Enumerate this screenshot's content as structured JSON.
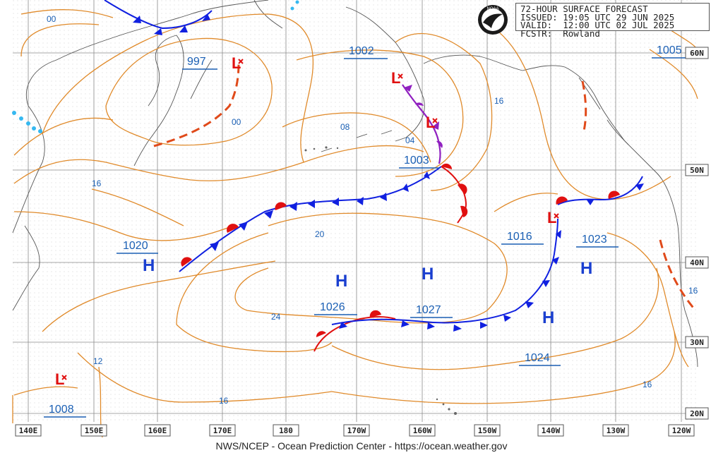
{
  "header": {
    "product": "72-HOUR SURFACE FORECAST",
    "issued": "ISSUED: 19:05 UTC 29 JUN 2025",
    "valid": "VALID:  12:00 UTC 02 JUL 2025",
    "forecaster": "FCSTR:  Rowland"
  },
  "footer": "NWS/NCEP - Ocean Prediction Center - https://ocean.weather.gov",
  "logo": "NOAA",
  "bottom_labels": [
    "140E",
    "150E",
    "160E",
    "170E",
    "180",
    "170W",
    "160W",
    "150W",
    "140W",
    "130W",
    "120W"
  ],
  "right_labels": [
    "60N",
    "50N",
    "40N",
    "30N",
    "20N"
  ],
  "pressure_labels": {
    "p997": "997",
    "p1002": "1002",
    "p1005": "1005",
    "p1003": "1003",
    "p1020": "1020",
    "p1016": "1016",
    "p1023": "1023",
    "p1026": "1026",
    "p1027": "1027",
    "p1024": "1024",
    "p1008": "1008"
  },
  "isobar_labels": {
    "i00a": "00",
    "i00b": "00",
    "i08": "08",
    "i04": "04",
    "i16a": "16",
    "i16b": "16",
    "i16c": "16",
    "i16d": "16",
    "i16e": "16",
    "i20": "20",
    "i24": "24",
    "i12": "12"
  },
  "high_symbol": "H",
  "low_symbol": "L",
  "colors": {
    "isobar": "#e08a2a",
    "cold_front": "#1020e0",
    "warm_front": "#e01010",
    "occluded": "#9020c0",
    "text_blue": "#1a5fb4",
    "grid": "#808080"
  }
}
